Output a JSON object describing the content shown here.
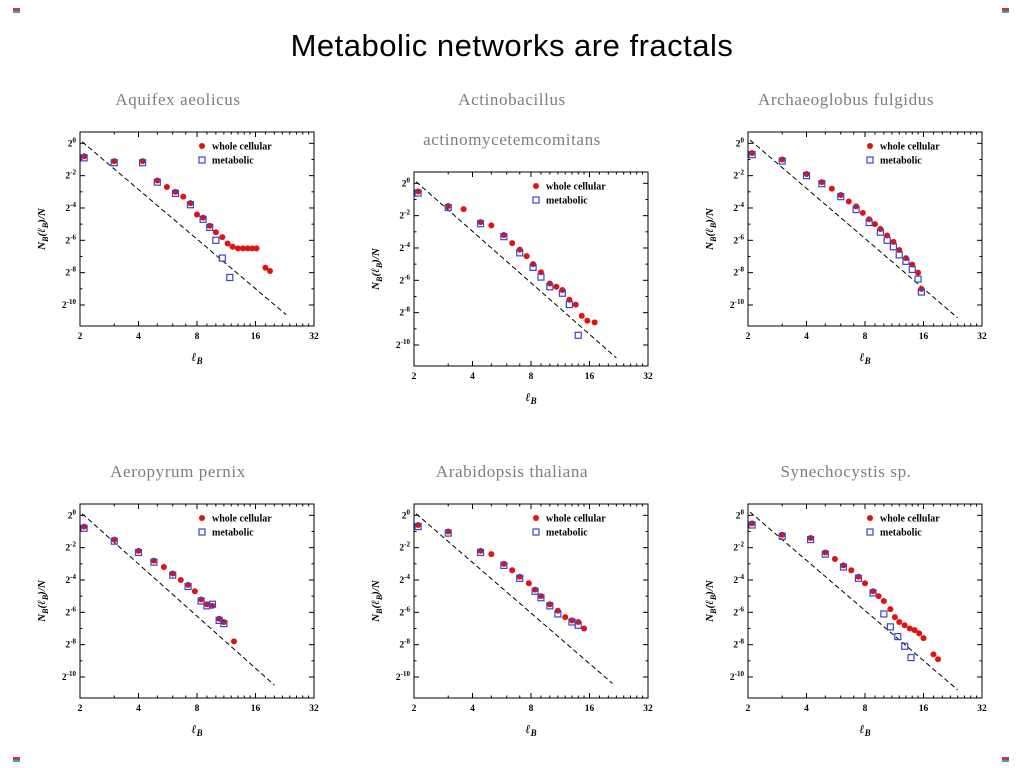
{
  "slide": {
    "title": "Metabolic networks are fractals"
  },
  "chart_common": {
    "ylabel": "N_B(ℓ_B)/N",
    "xlabel": "ℓ_B",
    "x_ticks": [
      2,
      4,
      8,
      16,
      32
    ],
    "y_tick_exponents": [
      0,
      -2,
      -4,
      -6,
      -8,
      -10
    ],
    "legend": [
      {
        "label": "whole cellular",
        "marker": "filled-circle"
      },
      {
        "label": "metabolic",
        "marker": "open-square"
      }
    ],
    "colors": {
      "whole_cellular": "#e01212",
      "metabolic": "#3a46c8",
      "fit_line": "#000000",
      "title_gray": "#7d7d7d"
    }
  },
  "chart_data": [
    {
      "type": "scatter",
      "title": "Aquifex aeolicus",
      "xlim": [
        2,
        32
      ],
      "ylim_exponents": [
        0,
        -10
      ],
      "fit_line": {
        "x1": 2.05,
        "e1": 0.1,
        "x2": 23,
        "e2": -10.6
      },
      "series": [
        {
          "name": "whole cellular",
          "points": [
            [
              2.1,
              -0.8
            ],
            [
              3,
              -1.1
            ],
            [
              4.2,
              -1.1
            ],
            [
              5,
              -2.3
            ],
            [
              5.6,
              -2.7
            ],
            [
              6.2,
              -3.0
            ],
            [
              6.8,
              -3.3
            ],
            [
              7.4,
              -3.7
            ],
            [
              8,
              -4.4
            ],
            [
              8.6,
              -4.6
            ],
            [
              9.3,
              -5.1
            ],
            [
              10,
              -5.5
            ],
            [
              10.8,
              -5.8
            ],
            [
              11.5,
              -6.2
            ],
            [
              12.2,
              -6.4
            ],
            [
              13,
              -6.5
            ],
            [
              13.8,
              -6.5
            ],
            [
              14.6,
              -6.5
            ],
            [
              15.4,
              -6.5
            ],
            [
              16.2,
              -6.5
            ],
            [
              18,
              -7.7
            ],
            [
              19,
              -7.9
            ]
          ]
        },
        {
          "name": "metabolic",
          "points": [
            [
              2.1,
              -0.9
            ],
            [
              3,
              -1.2
            ],
            [
              4.2,
              -1.2
            ],
            [
              5,
              -2.4
            ],
            [
              6.2,
              -3.1
            ],
            [
              7.4,
              -3.8
            ],
            [
              8.6,
              -4.7
            ],
            [
              9.3,
              -5.2
            ],
            [
              10,
              -6.0
            ],
            [
              10.8,
              -7.1
            ],
            [
              11.8,
              -8.3
            ]
          ]
        }
      ]
    },
    {
      "type": "scatter",
      "title": "Actinobacillus\nactinomycetemcomitans",
      "xlim": [
        2,
        32
      ],
      "ylim_exponents": [
        0,
        -10
      ],
      "fit_line": {
        "x1": 2.05,
        "e1": 0.1,
        "x2": 22,
        "e2": -10.8
      },
      "series": [
        {
          "name": "whole cellular",
          "points": [
            [
              2.1,
              -0.5
            ],
            [
              3,
              -1.4
            ],
            [
              3.6,
              -1.6
            ],
            [
              4.4,
              -2.4
            ],
            [
              5,
              -2.6
            ],
            [
              5.8,
              -3.2
            ],
            [
              6.4,
              -3.7
            ],
            [
              7,
              -4.1
            ],
            [
              7.6,
              -4.5
            ],
            [
              8.2,
              -5.0
            ],
            [
              9,
              -5.5
            ],
            [
              10,
              -6.2
            ],
            [
              10.8,
              -6.4
            ],
            [
              11.6,
              -6.6
            ],
            [
              12.6,
              -7.2
            ],
            [
              13.6,
              -7.5
            ],
            [
              14.6,
              -8.2
            ],
            [
              15.6,
              -8.5
            ],
            [
              17,
              -8.6
            ]
          ]
        },
        {
          "name": "metabolic",
          "points": [
            [
              2.1,
              -0.6
            ],
            [
              3,
              -1.5
            ],
            [
              4.4,
              -2.5
            ],
            [
              5.8,
              -3.3
            ],
            [
              7,
              -4.3
            ],
            [
              8.2,
              -5.2
            ],
            [
              9,
              -5.8
            ],
            [
              10,
              -6.4
            ],
            [
              11.6,
              -6.8
            ],
            [
              12.6,
              -7.5
            ],
            [
              14,
              -9.4
            ]
          ]
        }
      ]
    },
    {
      "type": "scatter",
      "title": "Archaeoglobus fulgidus",
      "xlim": [
        2,
        32
      ],
      "ylim_exponents": [
        0,
        -10
      ],
      "fit_line": {
        "x1": 2.05,
        "e1": 0.2,
        "x2": 24,
        "e2": -10.8
      },
      "series": [
        {
          "name": "whole cellular",
          "points": [
            [
              2.1,
              -0.6
            ],
            [
              3,
              -1.0
            ],
            [
              4,
              -1.9
            ],
            [
              4.8,
              -2.4
            ],
            [
              5.4,
              -2.8
            ],
            [
              6,
              -3.2
            ],
            [
              6.6,
              -3.6
            ],
            [
              7.2,
              -3.9
            ],
            [
              7.8,
              -4.3
            ],
            [
              8.4,
              -4.7
            ],
            [
              9,
              -5.0
            ],
            [
              9.6,
              -5.3
            ],
            [
              10.4,
              -5.7
            ],
            [
              11.2,
              -6.1
            ],
            [
              12,
              -6.6
            ],
            [
              13,
              -7.1
            ],
            [
              14,
              -7.5
            ],
            [
              15,
              -8.0
            ],
            [
              15.6,
              -9.0
            ]
          ]
        },
        {
          "name": "metabolic",
          "points": [
            [
              2.1,
              -0.7
            ],
            [
              3,
              -1.1
            ],
            [
              4,
              -2.0
            ],
            [
              4.8,
              -2.5
            ],
            [
              6,
              -3.3
            ],
            [
              7.2,
              -4.1
            ],
            [
              8.4,
              -4.9
            ],
            [
              9.6,
              -5.5
            ],
            [
              10.4,
              -6.0
            ],
            [
              11.2,
              -6.4
            ],
            [
              12,
              -6.9
            ],
            [
              13,
              -7.3
            ],
            [
              14,
              -7.8
            ],
            [
              15,
              -8.4
            ],
            [
              15.6,
              -9.2
            ]
          ]
        }
      ]
    },
    {
      "type": "scatter",
      "title": "Aeropyrum pernix",
      "xlim": [
        2,
        32
      ],
      "ylim_exponents": [
        0,
        -10
      ],
      "fit_line": {
        "x1": 2.05,
        "e1": 0.1,
        "x2": 20,
        "e2": -10.5
      },
      "series": [
        {
          "name": "whole cellular",
          "points": [
            [
              2.1,
              -0.7
            ],
            [
              3,
              -1.5
            ],
            [
              4,
              -2.2
            ],
            [
              4.8,
              -2.8
            ],
            [
              5.4,
              -3.2
            ],
            [
              6,
              -3.6
            ],
            [
              6.6,
              -4.0
            ],
            [
              7.2,
              -4.3
            ],
            [
              7.8,
              -4.7
            ],
            [
              8.4,
              -5.2
            ],
            [
              9,
              -5.5
            ],
            [
              9.6,
              -5.6
            ],
            [
              10.4,
              -6.4
            ],
            [
              11,
              -6.6
            ],
            [
              12.4,
              -7.8
            ]
          ]
        },
        {
          "name": "metabolic",
          "points": [
            [
              2.1,
              -0.8
            ],
            [
              3,
              -1.6
            ],
            [
              4,
              -2.3
            ],
            [
              4.8,
              -2.9
            ],
            [
              6,
              -3.7
            ],
            [
              7.2,
              -4.4
            ],
            [
              8.4,
              -5.3
            ],
            [
              9,
              -5.6
            ],
            [
              9.6,
              -5.5
            ],
            [
              10.4,
              -6.5
            ],
            [
              11,
              -6.7
            ]
          ]
        }
      ]
    },
    {
      "type": "scatter",
      "title": "Arabidopsis thaliana",
      "xlim": [
        2,
        32
      ],
      "ylim_exponents": [
        0,
        -10
      ],
      "fit_line": {
        "x1": 2.05,
        "e1": 0.1,
        "x2": 21,
        "e2": -10.4
      },
      "series": [
        {
          "name": "whole cellular",
          "points": [
            [
              2.1,
              -0.6
            ],
            [
              3,
              -1.0
            ],
            [
              4.4,
              -2.2
            ],
            [
              5,
              -2.4
            ],
            [
              5.8,
              -3.0
            ],
            [
              6.4,
              -3.4
            ],
            [
              7,
              -3.8
            ],
            [
              7.8,
              -4.2
            ],
            [
              8.4,
              -4.6
            ],
            [
              9,
              -5.0
            ],
            [
              10,
              -5.5
            ],
            [
              11,
              -5.9
            ],
            [
              12,
              -6.3
            ],
            [
              13,
              -6.5
            ],
            [
              14,
              -6.6
            ],
            [
              15,
              -7.0
            ]
          ]
        },
        {
          "name": "metabolic",
          "points": [
            [
              2.1,
              -0.7
            ],
            [
              3,
              -1.1
            ],
            [
              4.4,
              -2.3
            ],
            [
              5.8,
              -3.1
            ],
            [
              7,
              -3.9
            ],
            [
              8.4,
              -4.7
            ],
            [
              9,
              -5.1
            ],
            [
              10,
              -5.6
            ],
            [
              11,
              -6.1
            ],
            [
              13,
              -6.6
            ],
            [
              14,
              -6.8
            ]
          ]
        }
      ]
    },
    {
      "type": "scatter",
      "title": "Synechocystis sp.",
      "xlim": [
        2,
        32
      ],
      "ylim_exponents": [
        0,
        -10
      ],
      "fit_line": {
        "x1": 2.05,
        "e1": 0.2,
        "x2": 24,
        "e2": -10.8
      },
      "series": [
        {
          "name": "whole cellular",
          "points": [
            [
              2.1,
              -0.5
            ],
            [
              3,
              -1.2
            ],
            [
              4.2,
              -1.4
            ],
            [
              5,
              -2.3
            ],
            [
              5.6,
              -2.7
            ],
            [
              6.2,
              -3.1
            ],
            [
              6.8,
              -3.4
            ],
            [
              7.4,
              -3.8
            ],
            [
              8,
              -4.2
            ],
            [
              8.8,
              -4.7
            ],
            [
              9.4,
              -5.0
            ],
            [
              10,
              -5.3
            ],
            [
              10.8,
              -5.8
            ],
            [
              11.4,
              -6.3
            ],
            [
              12,
              -6.6
            ],
            [
              12.8,
              -6.8
            ],
            [
              13.6,
              -7.0
            ],
            [
              14.4,
              -7.1
            ],
            [
              15.2,
              -7.3
            ],
            [
              16,
              -7.6
            ],
            [
              18,
              -8.6
            ],
            [
              19,
              -8.9
            ]
          ]
        },
        {
          "name": "metabolic",
          "points": [
            [
              2.1,
              -0.6
            ],
            [
              3,
              -1.3
            ],
            [
              4.2,
              -1.5
            ],
            [
              5,
              -2.4
            ],
            [
              6.2,
              -3.2
            ],
            [
              7.4,
              -3.9
            ],
            [
              8.8,
              -4.8
            ],
            [
              10,
              -6.1
            ],
            [
              10.8,
              -6.9
            ],
            [
              11.8,
              -7.5
            ],
            [
              12.8,
              -8.1
            ],
            [
              13.8,
              -8.8
            ]
          ]
        }
      ]
    }
  ]
}
